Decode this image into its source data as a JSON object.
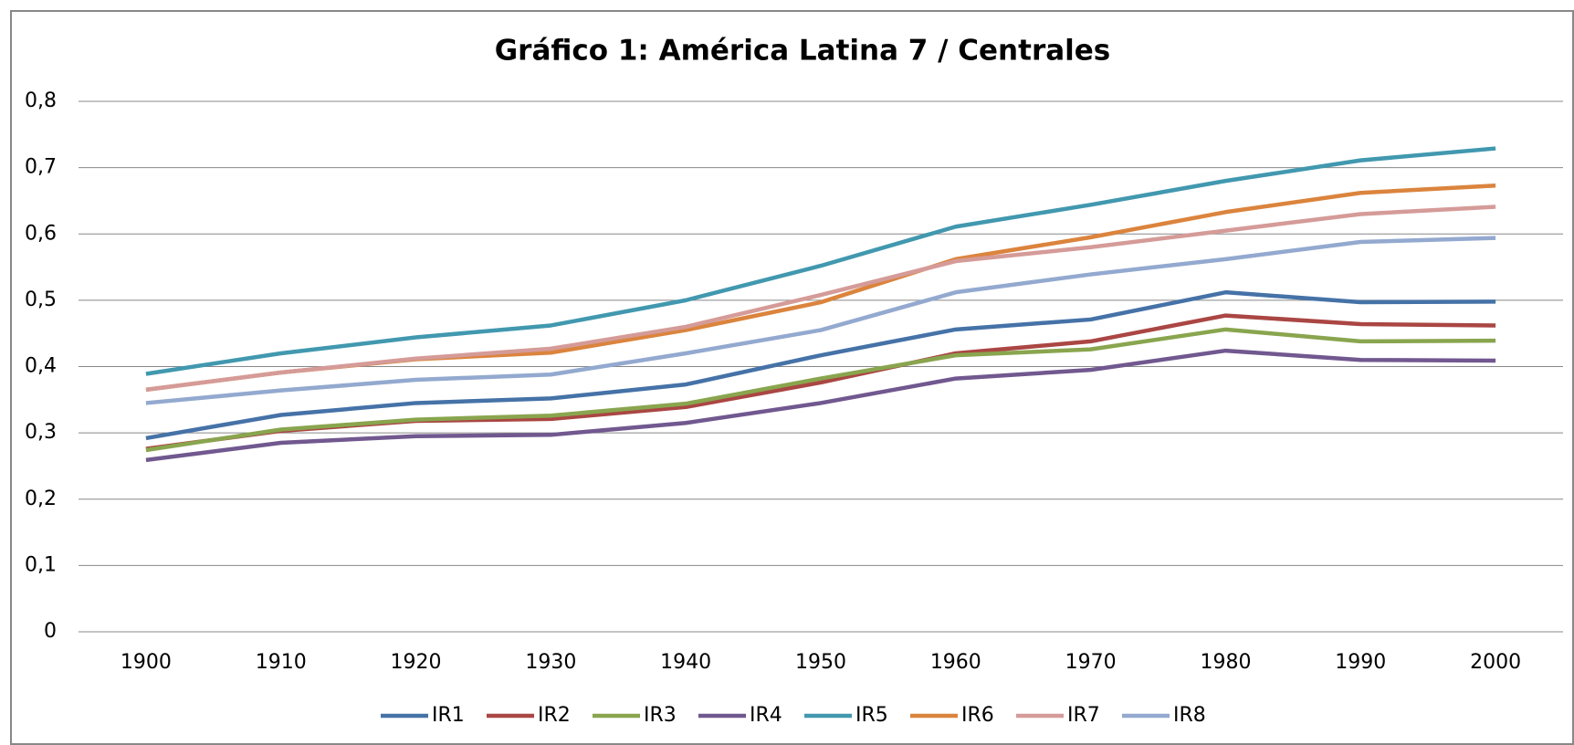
{
  "chart_data": {
    "type": "line",
    "title": "Gráfico 1: América Latina 7 / Centrales",
    "categories": [
      "1900",
      "1910",
      "1920",
      "1930",
      "1940",
      "1950",
      "1960",
      "1970",
      "1980",
      "1990",
      "2000"
    ],
    "ylim": [
      0,
      0.8
    ],
    "yticks": [
      0,
      {
        "value": 0.1,
        "label": "0,1"
      },
      {
        "value": 0.2,
        "label": "0,2"
      },
      {
        "value": 0.3,
        "label": "0,3"
      },
      {
        "value": 0.4,
        "label": "0,4"
      },
      {
        "value": 0.5,
        "label": "0,5"
      },
      {
        "value": 0.6,
        "label": "0,6"
      },
      {
        "value": 0.7,
        "label": "0,7"
      },
      {
        "value": 0.8,
        "label": "0,8"
      }
    ],
    "grid": true,
    "legend": "bottom",
    "series": [
      {
        "name": "IR1",
        "color": "#4572a7",
        "values": [
          0.292,
          0.327,
          0.345,
          0.352,
          0.373,
          0.417,
          0.456,
          0.471,
          0.512,
          0.497,
          0.498
        ]
      },
      {
        "name": "IR2",
        "color": "#aa4643",
        "values": [
          0.276,
          0.303,
          0.318,
          0.321,
          0.339,
          0.376,
          0.42,
          0.438,
          0.477,
          0.464,
          0.462
        ]
      },
      {
        "name": "IR3",
        "color": "#89a54e",
        "values": [
          0.274,
          0.305,
          0.32,
          0.326,
          0.344,
          0.382,
          0.417,
          0.426,
          0.456,
          0.438,
          0.439
        ]
      },
      {
        "name": "IR4",
        "color": "#71588f",
        "values": [
          0.259,
          0.285,
          0.295,
          0.297,
          0.315,
          0.345,
          0.382,
          0.395,
          0.424,
          0.41,
          0.409
        ]
      },
      {
        "name": "IR5",
        "color": "#4198af",
        "values": [
          0.389,
          0.42,
          0.444,
          0.462,
          0.5,
          0.552,
          0.611,
          0.644,
          0.68,
          0.711,
          0.729
        ]
      },
      {
        "name": "IR6",
        "color": "#db843d",
        "values": [
          0.365,
          0.391,
          0.411,
          0.421,
          0.455,
          0.497,
          0.562,
          0.595,
          0.633,
          0.662,
          0.673
        ]
      },
      {
        "name": "IR7",
        "color": "#d59b98",
        "values": [
          0.365,
          0.391,
          0.412,
          0.427,
          0.46,
          0.508,
          0.559,
          0.58,
          0.605,
          0.63,
          0.641
        ]
      },
      {
        "name": "IR8",
        "color": "#93a9cf",
        "values": [
          0.345,
          0.364,
          0.38,
          0.388,
          0.42,
          0.455,
          0.512,
          0.539,
          0.562,
          0.588,
          0.594
        ]
      }
    ]
  }
}
